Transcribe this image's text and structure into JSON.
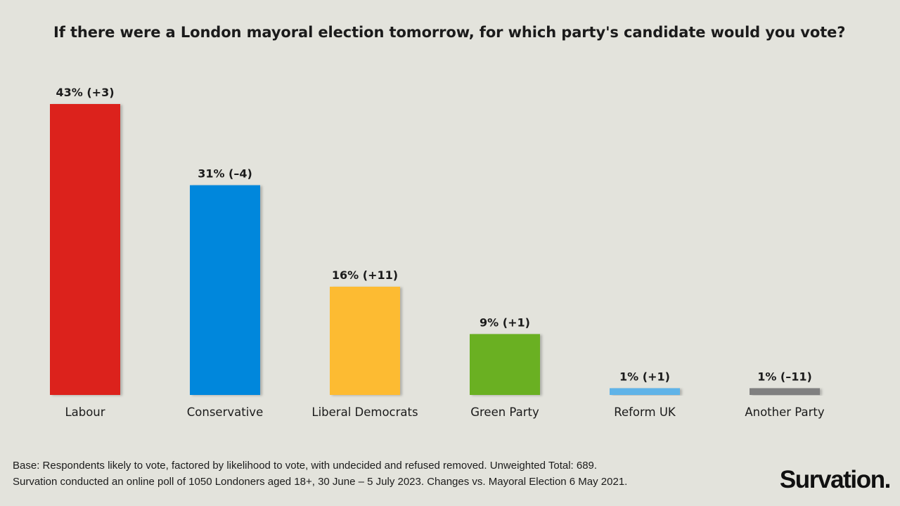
{
  "chart_data": {
    "type": "bar",
    "title": "If there were a London mayoral election tomorrow, for which party's candidate would you vote?",
    "categories": [
      "Labour",
      "Conservative",
      "Liberal Democrats",
      "Green Party",
      "Reform UK",
      "Another Party"
    ],
    "values": [
      43,
      31,
      16,
      9,
      1,
      1
    ],
    "changes": [
      "+3",
      "–4",
      "+11",
      "+1",
      "+1",
      "–11"
    ],
    "data_labels": [
      "43% (+3)",
      "31% (–4)",
      "16% (+11)",
      "9% (+1)",
      "1% (+1)",
      "1% (–11)"
    ],
    "colors": [
      "#dc241f",
      "#0087dc",
      "#fdbb30",
      "#6ab023",
      "#5eb3e8",
      "#808080"
    ],
    "ylim": [
      0,
      43
    ],
    "grid": false,
    "legend": "none",
    "xlabel": "",
    "ylabel": ""
  },
  "footer": {
    "base": "Base: Respondents likely to vote, factored by likelihood to vote, with undecided and refused removed. Unweighted Total: 689.",
    "method": "Survation conducted an online poll of 1050 Londoners aged 18+, 30 June – 5 July 2023. Changes vs. Mayoral Election 6 May 2021."
  },
  "brand": {
    "logo": "Survation."
  }
}
